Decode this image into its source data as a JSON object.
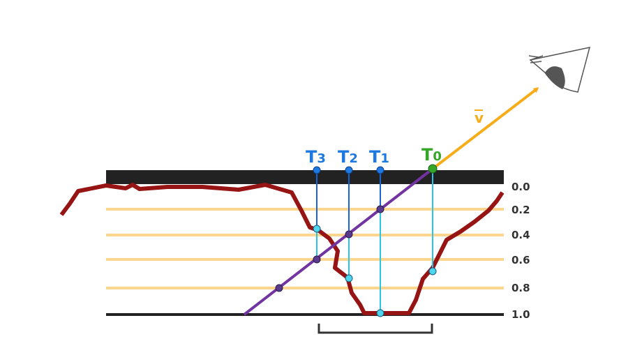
{
  "diagram": {
    "depth_labels": [
      "0.0",
      "0.2",
      "0.4",
      "0.6",
      "0.8",
      "1.0"
    ],
    "samples": [
      {
        "letter": "T",
        "index": "3"
      },
      {
        "letter": "T",
        "index": "2"
      },
      {
        "letter": "T",
        "index": "1"
      },
      {
        "letter": "T",
        "index": "0"
      }
    ],
    "view_vector_label": "v",
    "colors": {
      "surface": "#222222",
      "layer_lines": "#fcd68e",
      "heightfield": "#961414",
      "view_ray": "#7234a0",
      "view_vector": "#f7ac1a",
      "sample_label": "#1d78e0",
      "sample_line": "#1a63d6",
      "hit_line": "#27c6e8",
      "hit_point": "#4fd6ef",
      "ray_point": "#5a3a8c",
      "start_point": "#35a628"
    },
    "icons": [
      "eye-icon"
    ]
  }
}
